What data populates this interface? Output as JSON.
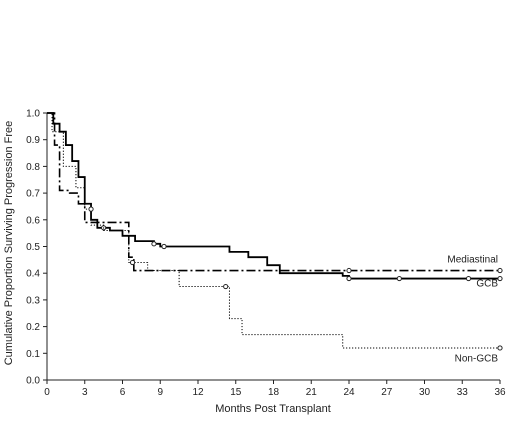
{
  "chart_data": {
    "type": "line",
    "subtype": "kaplan-meier step curves with censor markers",
    "title": "",
    "xlabel": "Months Post Transplant",
    "ylabel": "Cumulative Proportion Surviving Progression Free",
    "xlim": [
      0,
      36
    ],
    "ylim": [
      0,
      1
    ],
    "x_ticks": [
      0,
      3,
      6,
      9,
      12,
      15,
      18,
      21,
      24,
      27,
      30,
      33,
      36
    ],
    "y_ticks": [
      0.0,
      0.1,
      0.2,
      0.3,
      0.4,
      0.5,
      0.6,
      0.7,
      0.8,
      0.9,
      1.0
    ],
    "y_tick_labels": [
      "0.0",
      "0.1",
      "0.2",
      "0.3",
      "0.4",
      "0.5",
      "0.6",
      "0.7",
      "0.8",
      "0.9",
      "1.0"
    ],
    "grid": false,
    "legend": "none (series labeled inline at right)",
    "series": [
      {
        "name": "Mediastinal",
        "line_style": "dash-dot",
        "color": "#000000",
        "points": [
          [
            0,
            1.0
          ],
          [
            0.6,
            1.0
          ],
          [
            0.6,
            0.88
          ],
          [
            1.0,
            0.88
          ],
          [
            1.0,
            0.71
          ],
          [
            1.8,
            0.71
          ],
          [
            1.8,
            0.7
          ],
          [
            2.5,
            0.7
          ],
          [
            2.5,
            0.66
          ],
          [
            3.0,
            0.66
          ],
          [
            3.0,
            0.59
          ],
          [
            6.5,
            0.59
          ],
          [
            6.5,
            0.46
          ],
          [
            6.9,
            0.46
          ],
          [
            6.9,
            0.41
          ],
          [
            36,
            0.41
          ]
        ],
        "censored": [
          [
            24,
            0.41
          ],
          [
            36,
            0.41
          ]
        ],
        "label_y": 0.44
      },
      {
        "name": "GCB",
        "line_style": "solid",
        "color": "#000000",
        "points": [
          [
            0,
            1.0
          ],
          [
            0.5,
            1.0
          ],
          [
            0.5,
            0.96
          ],
          [
            1.0,
            0.96
          ],
          [
            1.0,
            0.93
          ],
          [
            1.5,
            0.93
          ],
          [
            1.5,
            0.88
          ],
          [
            2.0,
            0.88
          ],
          [
            2.0,
            0.82
          ],
          [
            2.5,
            0.82
          ],
          [
            2.5,
            0.76
          ],
          [
            3.0,
            0.76
          ],
          [
            3.0,
            0.66
          ],
          [
            3.5,
            0.66
          ],
          [
            3.5,
            0.6
          ],
          [
            4.0,
            0.6
          ],
          [
            4.0,
            0.57
          ],
          [
            5.0,
            0.57
          ],
          [
            5.0,
            0.56
          ],
          [
            6.0,
            0.56
          ],
          [
            6.0,
            0.54
          ],
          [
            7.0,
            0.54
          ],
          [
            7.0,
            0.52
          ],
          [
            8.5,
            0.52
          ],
          [
            8.5,
            0.51
          ],
          [
            9.0,
            0.51
          ],
          [
            9.0,
            0.5
          ],
          [
            14.5,
            0.5
          ],
          [
            14.5,
            0.48
          ],
          [
            16.0,
            0.48
          ],
          [
            16.0,
            0.46
          ],
          [
            17.5,
            0.46
          ],
          [
            17.5,
            0.43
          ],
          [
            18.5,
            0.43
          ],
          [
            18.5,
            0.4
          ],
          [
            23.5,
            0.4
          ],
          [
            23.5,
            0.39
          ],
          [
            24.0,
            0.39
          ],
          [
            24.0,
            0.38
          ],
          [
            36,
            0.38
          ]
        ],
        "censored": [
          [
            4.5,
            0.57
          ],
          [
            8.5,
            0.51
          ],
          [
            9.3,
            0.5
          ],
          [
            24,
            0.38
          ],
          [
            28,
            0.38
          ],
          [
            33.5,
            0.38
          ],
          [
            36,
            0.38
          ]
        ],
        "label_y": 0.35
      },
      {
        "name": "Non-GCB",
        "line_style": "dotted",
        "color": "#000000",
        "points": [
          [
            0,
            1.0
          ],
          [
            0.4,
            1.0
          ],
          [
            0.4,
            0.93
          ],
          [
            1.3,
            0.93
          ],
          [
            1.3,
            0.8
          ],
          [
            2.3,
            0.8
          ],
          [
            2.3,
            0.72
          ],
          [
            3.0,
            0.72
          ],
          [
            3.0,
            0.64
          ],
          [
            3.5,
            0.64
          ],
          [
            3.5,
            0.58
          ],
          [
            4.5,
            0.58
          ],
          [
            4.5,
            0.56
          ],
          [
            6.5,
            0.56
          ],
          [
            6.5,
            0.44
          ],
          [
            8.0,
            0.44
          ],
          [
            8.0,
            0.41
          ],
          [
            10.5,
            0.41
          ],
          [
            10.5,
            0.35
          ],
          [
            14.5,
            0.35
          ],
          [
            14.5,
            0.23
          ],
          [
            15.5,
            0.23
          ],
          [
            15.5,
            0.17
          ],
          [
            23.5,
            0.17
          ],
          [
            23.5,
            0.12
          ],
          [
            36,
            0.12
          ]
        ],
        "censored": [
          [
            3.5,
            0.64
          ],
          [
            6.8,
            0.44
          ],
          [
            14.2,
            0.35
          ],
          [
            36,
            0.12
          ]
        ],
        "label_y": 0.07
      }
    ]
  }
}
